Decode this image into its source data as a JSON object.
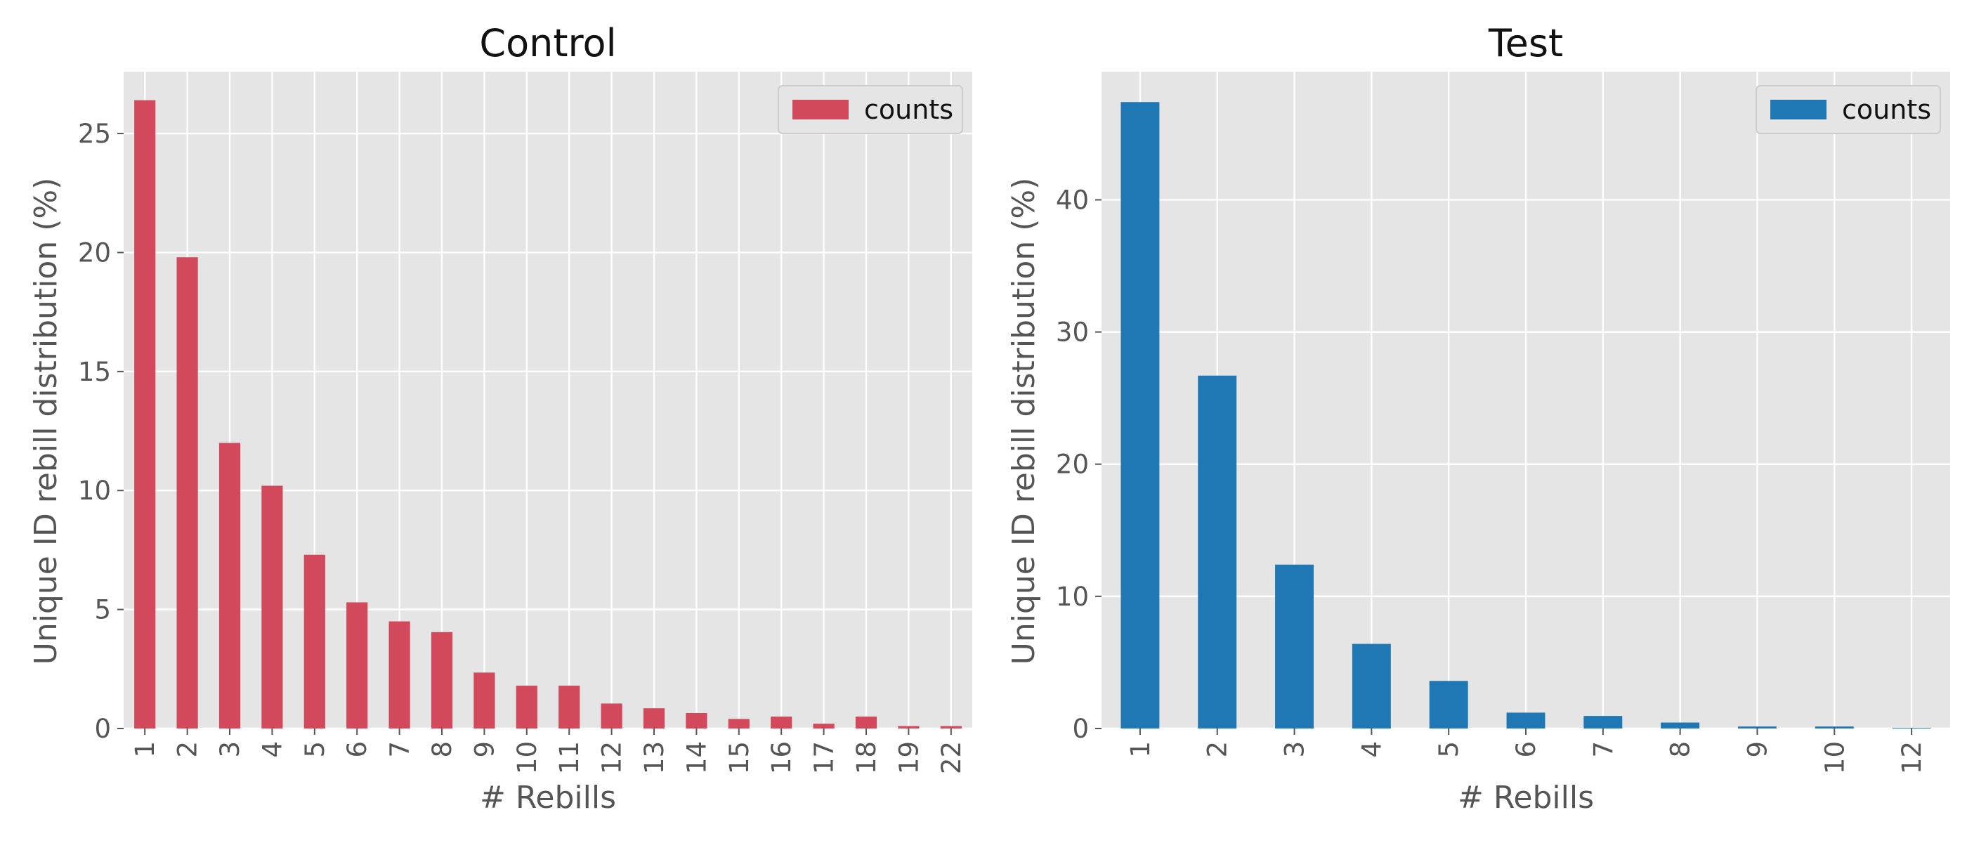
{
  "chart_data": [
    {
      "type": "bar",
      "title": "Control",
      "xlabel": "# Rebills",
      "ylabel": "Unique ID rebill distribution (%)",
      "categories": [
        "1",
        "2",
        "3",
        "4",
        "5",
        "6",
        "7",
        "8",
        "9",
        "10",
        "11",
        "12",
        "13",
        "14",
        "15",
        "16",
        "17",
        "18",
        "19",
        "22"
      ],
      "series": [
        {
          "name": "counts",
          "color": "#d1495b",
          "values": [
            26.4,
            19.8,
            12.0,
            10.2,
            7.3,
            5.3,
            4.5,
            4.05,
            2.35,
            1.8,
            1.8,
            1.05,
            0.85,
            0.65,
            0.4,
            0.5,
            0.2,
            0.5,
            0.1,
            0.1
          ]
        }
      ],
      "ylim": [
        0,
        27.6
      ],
      "yticks": [
        0,
        5,
        10,
        15,
        20,
        25
      ],
      "grid": true,
      "legend": "top-right"
    },
    {
      "type": "bar",
      "title": "Test",
      "xlabel": "# Rebills",
      "ylabel": "Unique ID rebill distribution (%)",
      "categories": [
        "1",
        "2",
        "3",
        "4",
        "5",
        "6",
        "7",
        "8",
        "9",
        "10",
        "12"
      ],
      "series": [
        {
          "name": "counts",
          "color": "#1f77b4",
          "values": [
            47.4,
            26.7,
            12.4,
            6.4,
            3.6,
            1.2,
            0.95,
            0.45,
            0.15,
            0.15,
            0.05
          ]
        }
      ],
      "ylim": [
        0,
        49.7
      ],
      "yticks": [
        0,
        10,
        20,
        30,
        40
      ],
      "grid": true,
      "legend": "top-right"
    }
  ]
}
